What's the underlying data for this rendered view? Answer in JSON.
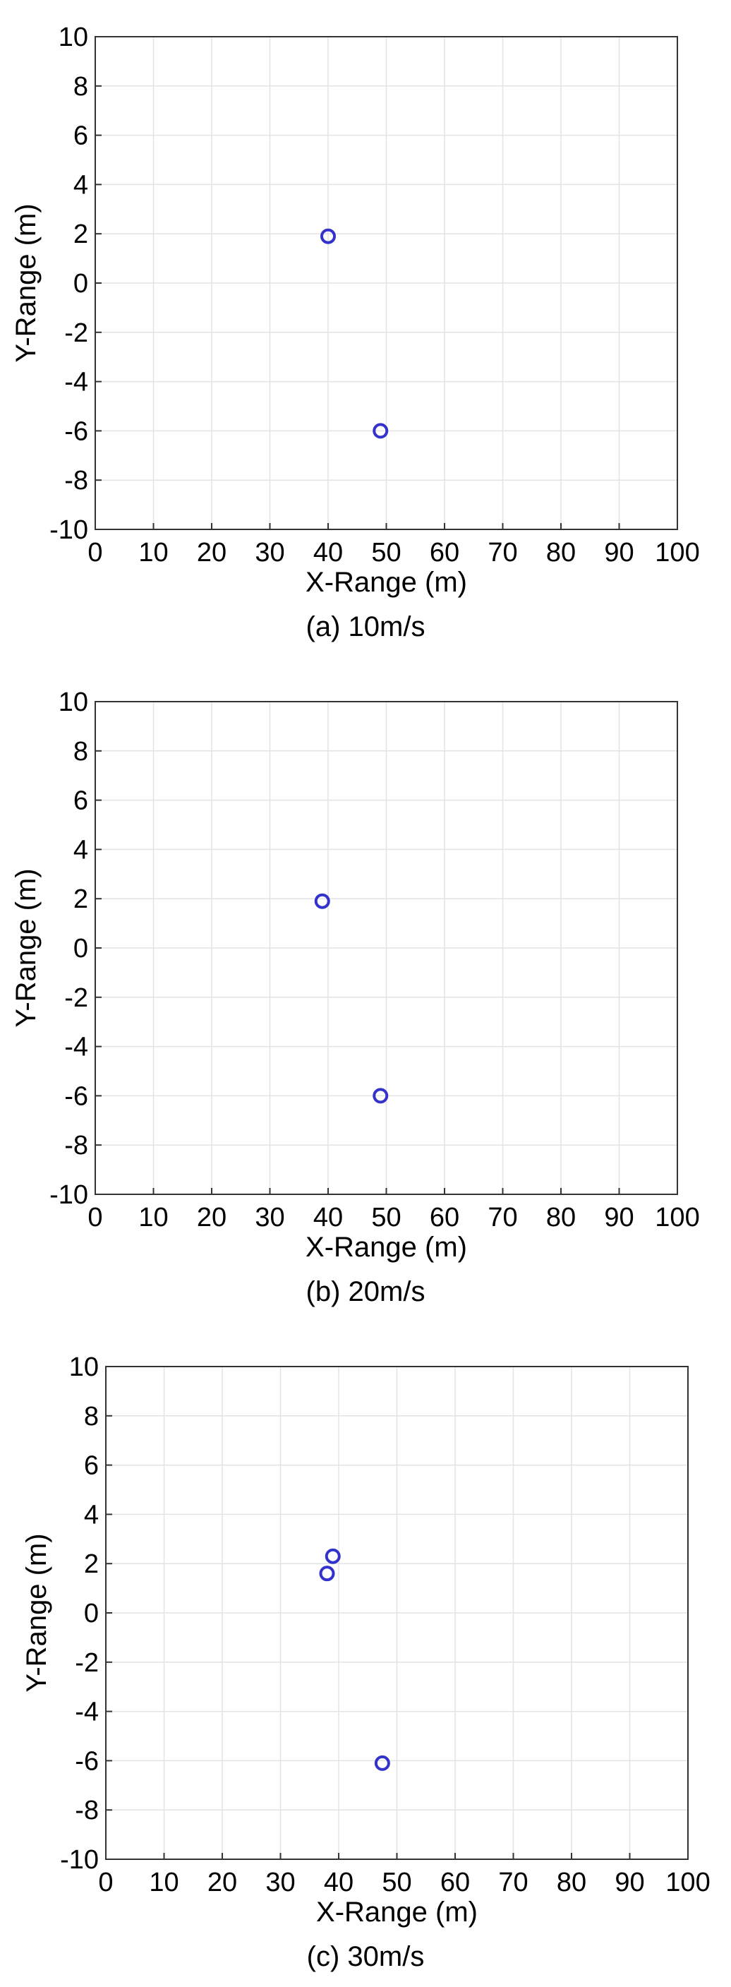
{
  "chart_data": [
    {
      "type": "scatter",
      "caption": "(a) 10m/s",
      "xlabel": "X-Range (m)",
      "ylabel": "Y-Range (m)",
      "xlim": [
        0,
        100
      ],
      "ylim": [
        -10,
        10
      ],
      "xticks": [
        0,
        10,
        20,
        30,
        40,
        50,
        60,
        70,
        80,
        90,
        100
      ],
      "yticks": [
        10,
        8,
        6,
        4,
        2,
        0,
        -2,
        -4,
        -6,
        -8,
        -10
      ],
      "grid": true,
      "marker_color": "#3333cc",
      "points": [
        {
          "x": 40,
          "y": 1.9
        },
        {
          "x": 49,
          "y": -6.0
        }
      ]
    },
    {
      "type": "scatter",
      "caption": "(b) 20m/s",
      "xlabel": "X-Range (m)",
      "ylabel": "Y-Range (m)",
      "xlim": [
        0,
        100
      ],
      "ylim": [
        -10,
        10
      ],
      "xticks": [
        0,
        10,
        20,
        30,
        40,
        50,
        60,
        70,
        80,
        90,
        100
      ],
      "yticks": [
        10,
        8,
        6,
        4,
        2,
        0,
        -2,
        -4,
        -6,
        -8,
        -10
      ],
      "grid": true,
      "marker_color": "#3333cc",
      "points": [
        {
          "x": 39,
          "y": 1.9
        },
        {
          "x": 49,
          "y": -6.0
        }
      ]
    },
    {
      "type": "scatter",
      "caption": "(c) 30m/s",
      "xlabel": "X-Range (m)",
      "ylabel": "Y-Range (m)",
      "xlim": [
        0,
        100
      ],
      "ylim": [
        -10,
        10
      ],
      "xticks": [
        0,
        10,
        20,
        30,
        40,
        50,
        60,
        70,
        80,
        90,
        100
      ],
      "yticks": [
        10,
        8,
        6,
        4,
        2,
        0,
        -2,
        -4,
        -6,
        -8,
        -10
      ],
      "grid": true,
      "marker_color": "#3333cc",
      "points": [
        {
          "x": 39,
          "y": 2.3
        },
        {
          "x": 38,
          "y": 1.6
        },
        {
          "x": 47.5,
          "y": -6.1
        }
      ]
    }
  ]
}
